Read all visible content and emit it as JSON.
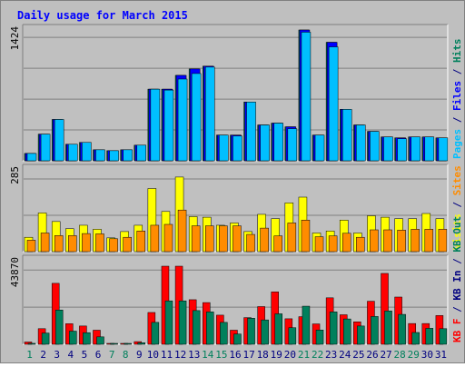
{
  "chart_data": {
    "type": "bar",
    "title": "Daily usage for March 2015",
    "categories": [
      "1",
      "2",
      "3",
      "4",
      "5",
      "6",
      "7",
      "8",
      "9",
      "10",
      "11",
      "12",
      "13",
      "14",
      "15",
      "16",
      "17",
      "18",
      "19",
      "20",
      "21",
      "22",
      "23",
      "24",
      "25",
      "26",
      "27",
      "28",
      "29",
      "30",
      "31"
    ],
    "weekend_days": [
      "1",
      "7",
      "8",
      "14",
      "15",
      "21",
      "22",
      "28",
      "29"
    ],
    "panels": [
      {
        "name": "pages-files-hits",
        "ymax_label": "1424",
        "ymax": 1424,
        "series": [
          {
            "name": "Pages",
            "color": "#00805c",
            "values": [
              80,
              290,
              450,
              180,
              200,
              120,
              110,
              120,
              170,
              780,
              780,
              930,
              1000,
              1030,
              280,
              280,
              640,
              390,
              410,
              370,
              1424,
              280,
              1290,
              560,
              390,
              320,
              260,
              250,
              260,
              260,
              250
            ]
          },
          {
            "name": "Files",
            "color": "#0000ff",
            "values": [
              80,
              290,
              450,
              180,
              200,
              120,
              110,
              120,
              170,
              780,
              780,
              930,
              1000,
              1030,
              280,
              280,
              640,
              390,
              410,
              370,
              1424,
              280,
              1290,
              560,
              390,
              320,
              260,
              250,
              260,
              260,
              250
            ]
          },
          {
            "name": "Hits",
            "color": "#00bfff",
            "values": [
              80,
              290,
              450,
              180,
              200,
              120,
              110,
              120,
              170,
              780,
              770,
              890,
              950,
              1020,
              280,
              270,
              640,
              390,
              410,
              350,
              1400,
              280,
              1240,
              560,
              390,
              320,
              260,
              240,
              260,
              260,
              250
            ]
          }
        ],
        "axis_labels": [
          {
            "text": "Pages",
            "color": "#00bfff"
          },
          {
            "text": " / ",
            "color": "#000080"
          },
          {
            "text": "Files",
            "color": "#0000ff"
          },
          {
            "text": " / ",
            "color": "#000080"
          },
          {
            "text": "Hits",
            "color": "#00805c"
          }
        ]
      },
      {
        "name": "visits-sites",
        "ymax_label": "285",
        "ymax": 285,
        "series": [
          {
            "name": "Visits",
            "color": "#ffff00",
            "values": [
              50,
              135,
              105,
              80,
              92,
              78,
              48,
              70,
              92,
              220,
              140,
              260,
              122,
              120,
              92,
              100,
              70,
              130,
              115,
              170,
              190,
              65,
              72,
              110,
              65,
              125,
              120,
              115,
              115,
              133,
              115
            ]
          },
          {
            "name": "Sites",
            "color": "#ff8c00",
            "values": [
              40,
              65,
              56,
              56,
              63,
              62,
              45,
              50,
              72,
              92,
              95,
              145,
              90,
              90,
              90,
              90,
              60,
              82,
              55,
              100,
              110,
              52,
              55,
              64,
              50,
              76,
              76,
              75,
              78,
              78,
              78
            ]
          }
        ],
        "axis_labels": [
          {
            "text": "Visits",
            "color": "#ffff00"
          },
          {
            "text": " / ",
            "color": "#000080"
          },
          {
            "text": "Sites",
            "color": "#ff8c00"
          }
        ]
      },
      {
        "name": "kbf-kbin-kbout",
        "ymax_label": "43870",
        "ymax": 43870,
        "series": [
          {
            "name": "KB F",
            "color": "#ff0000",
            "values": [
              1200,
              8200,
              32000,
              10800,
              9600,
              7400,
              300,
              200,
              1400,
              16700,
              41000,
              41000,
              23400,
              21900,
              15300,
              7400,
              14000,
              19800,
              27500,
              13400,
              14500,
              10700,
              24400,
              15500,
              11800,
              22600,
              37200,
              24800,
              10900,
              10900,
              15100
            ]
          },
          {
            "name": "KB In",
            "color": "#000080",
            "values": [
              0,
              0,
              0,
              0,
              0,
              0,
              0,
              0,
              0,
              0,
              0,
              0,
              0,
              0,
              0,
              0,
              0,
              0,
              0,
              0,
              0,
              0,
              0,
              0,
              0,
              0,
              0,
              0,
              0,
              0,
              0
            ]
          },
          {
            "name": "KB Out",
            "color": "#00805c",
            "values": [
              500,
              5900,
              18000,
              6900,
              6100,
              3900,
              100,
              100,
              800,
              11500,
              22800,
              22800,
              17700,
              17000,
              11500,
              5400,
              13700,
              12800,
              16000,
              8700,
              20000,
              7500,
              17000,
              13300,
              9600,
              14600,
              17500,
              15700,
              6200,
              8400,
              8200
            ]
          }
        ],
        "axis_labels": [
          {
            "text": "KB F",
            "color": "#ff0000"
          },
          {
            "text": " / ",
            "color": "#000080"
          },
          {
            "text": "KB In",
            "color": "#000080"
          },
          {
            "text": " / ",
            "color": "#000080"
          },
          {
            "text": "KB Out",
            "color": "#00805c"
          }
        ]
      }
    ]
  }
}
